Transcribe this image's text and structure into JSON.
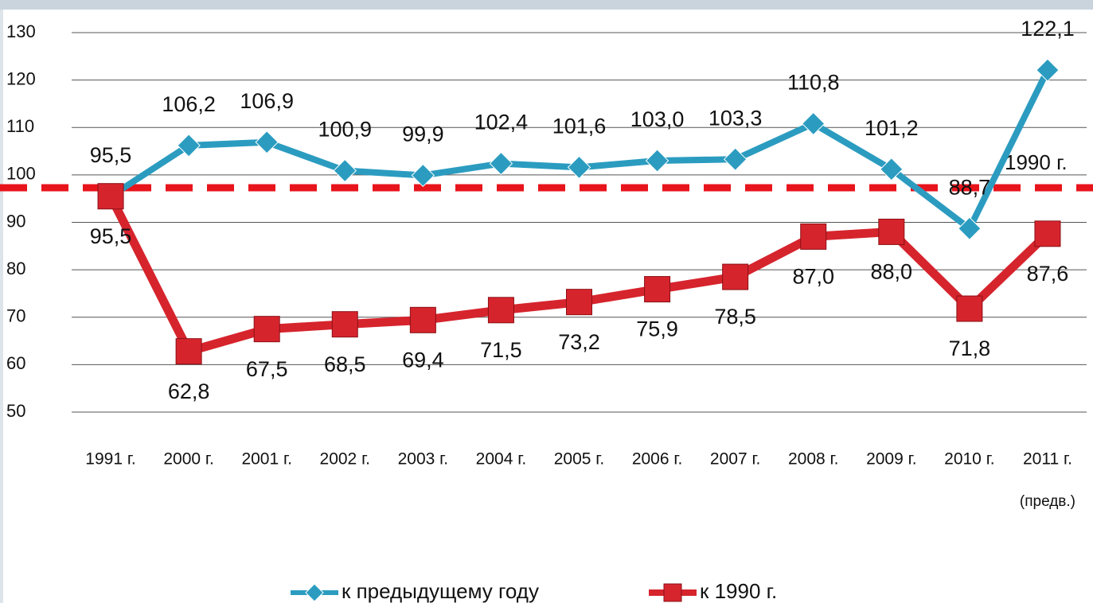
{
  "chart_data": {
    "type": "line",
    "categories": [
      "1991 г.",
      "2000 г.",
      "2001 г.",
      "2002 г.",
      "2003 г.",
      "2004 г.",
      "2005 г.",
      "2006 г.",
      "2007 г.",
      "2008 г.",
      "2009 г.",
      "2010 г.",
      "2011 г."
    ],
    "category_note": "(предв.)",
    "series": [
      {
        "name": "к предыдущему году",
        "color": "#2b9cc0",
        "marker": "diamond",
        "values": [
          95.5,
          106.2,
          106.9,
          100.9,
          99.9,
          102.4,
          101.6,
          103.0,
          103.3,
          110.8,
          101.2,
          88.7,
          122.1
        ],
        "value_labels": [
          "95,5",
          "106,2",
          "106,9",
          "100,9",
          "99,9",
          "102,4",
          "101,6",
          "103,0",
          "103,3",
          "110,8",
          "101,2",
          "88,7",
          "122,1"
        ]
      },
      {
        "name": "к 1990 г.",
        "color": "#d6242d",
        "marker": "square",
        "values": [
          95.5,
          62.8,
          67.5,
          68.5,
          69.4,
          71.5,
          73.2,
          75.9,
          78.5,
          87.0,
          88.0,
          71.8,
          87.6
        ],
        "value_labels": [
          "95,5",
          "62,8",
          "67,5",
          "68,5",
          "69,4",
          "71,5",
          "73,2",
          "75,9",
          "78,5",
          "87,0",
          "88,0",
          "71,8",
          "87,6"
        ]
      }
    ],
    "reference_line": {
      "value": 97.3,
      "label": "1990 г.",
      "color": "#e8141c"
    },
    "ylim": [
      50,
      130
    ],
    "yticks": [
      50,
      60,
      70,
      80,
      90,
      100,
      110,
      120,
      130
    ],
    "grid": true,
    "legend": "bottom"
  }
}
